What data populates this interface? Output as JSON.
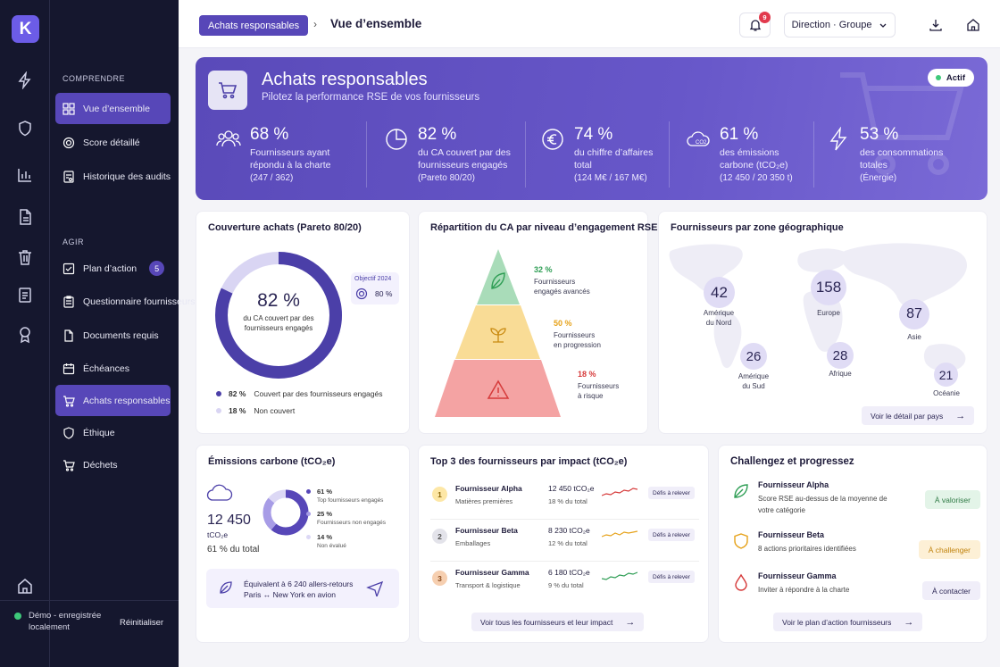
{
  "app": {
    "logo_letter": "K"
  },
  "sidebar": {
    "section_understand": "COMPRENDRE",
    "section_act": "AGIR",
    "items": [
      {
        "label": "Vue d’ensemble",
        "icon": "grid-icon"
      },
      {
        "label": "Score détaillé",
        "icon": "target-icon"
      },
      {
        "label": "Historique des audits",
        "icon": "audit-icon"
      },
      {
        "label": "Plan d’action",
        "icon": "checkbox-icon",
        "badge": "5"
      },
      {
        "label": "Questionnaire fournisseurs",
        "icon": "clipboard-icon"
      },
      {
        "label": "Documents requis",
        "icon": "document-icon"
      },
      {
        "label": "Échéances",
        "icon": "calendar-icon"
      },
      {
        "label": "Achats responsables",
        "icon": "cart-icon"
      },
      {
        "label": "Éthique",
        "icon": "shield-icon"
      },
      {
        "label": "Déchets",
        "icon": "cart-icon"
      }
    ],
    "footer": {
      "status": "Démo - enregistrée localement",
      "reset": "Réinitialiser"
    }
  },
  "header": {
    "breadcrumb_parent": "Achats responsables",
    "breadcrumb_sep": "›",
    "page_title": "Vue d’ensemble",
    "notifications_count": "9",
    "scope": "Direction · Groupe"
  },
  "hero": {
    "title": "Achats responsables",
    "subtitle": "Pilotez la performance RSE de vos fournisseurs",
    "status": "Actif",
    "kpis": [
      {
        "value": "68 %",
        "label1": "Fournisseurs ayant",
        "label2": "répondu à la charte",
        "sub": "(247 / 362)",
        "icon": "users-icon"
      },
      {
        "value": "82 %",
        "label1": "du CA couvert par des",
        "label2": "fournisseurs engagés",
        "sub": "(Pareto 80/20)",
        "icon": "pie-icon"
      },
      {
        "value": "74 %",
        "label1": "du chiffre d’affaires",
        "label2": "total",
        "sub": "(124 M€ / 167 M€)",
        "icon": "euro-icon"
      },
      {
        "value": "61 %",
        "label1": "des émissions",
        "label2": "carbone (tCO₂e)",
        "sub": "(12 450 / 20 350 t)",
        "icon": "co2-cloud-icon"
      },
      {
        "value": "53 %",
        "label1": "des consommations",
        "label2": "totales",
        "sub": "(Énergie)",
        "icon": "lightning-icon"
      }
    ]
  },
  "coverage": {
    "title": "Couverture achats (Pareto 80/20)",
    "center_value": "82 %",
    "center_label1": "du CA couvert par des",
    "center_label2": "fournisseurs engagés",
    "objective_label": "Objectif 2024",
    "objective_value": "80 %",
    "share_covered": 82,
    "legend": [
      {
        "value": "82 %",
        "label": "Couvert par des fournisseurs engagés",
        "color": "#4b3fa8"
      },
      {
        "value": "18 %",
        "label": "Non couvert",
        "color": "#d9d5f3"
      }
    ]
  },
  "pyramid": {
    "title": "Répartition du CA par niveau d’engagement RSE",
    "levels": [
      {
        "pct": "32 %",
        "label1": "Fournisseurs",
        "label2": "engagés avancés",
        "color": "#2f9e55"
      },
      {
        "pct": "50 %",
        "label1": "Fournisseurs",
        "label2": "en progression",
        "color": "#e6a21a"
      },
      {
        "pct": "18 %",
        "label1": "Fournisseurs",
        "label2": "à risque",
        "color": "#d63a3a"
      }
    ]
  },
  "geo": {
    "title": "Fournisseurs par zone géographique",
    "zones": [
      {
        "count": "42",
        "label1": "Amérique",
        "label2": "du Nord"
      },
      {
        "count": "158",
        "label1": "Europe",
        "label2": ""
      },
      {
        "count": "87",
        "label1": "Asie",
        "label2": ""
      },
      {
        "count": "26",
        "label1": "Amérique",
        "label2": "du Sud"
      },
      {
        "count": "28",
        "label1": "Afrique",
        "label2": ""
      },
      {
        "count": "21",
        "label1": "Océanie",
        "label2": ""
      }
    ],
    "link": "Voir le détail par pays"
  },
  "emissions": {
    "title": "Émissions carbone (tCO₂e)",
    "value": "12 450",
    "unit": "tCO₂e",
    "share": "61 % du total",
    "legend": [
      {
        "value": "61 %",
        "label": "Top fournisseurs engagés",
        "share": 61,
        "color": "#5747b8"
      },
      {
        "value": "25 %",
        "label": "Fournisseurs non engagés",
        "share": 25,
        "color": "#a79ce6"
      },
      {
        "value": "14 %",
        "label": "Non évalué",
        "share": 14,
        "color": "#dcd8f5"
      }
    ],
    "equivalence1": "Équivalent à 6 240 allers-retours",
    "equivalence2": "Paris ↔ New York en avion"
  },
  "top_suppliers": {
    "title": "Top 3 des fournisseurs par impact (tCO₂e)",
    "rows": [
      {
        "rank": "1",
        "name": "Fournisseur Alpha",
        "category": "Matières premières",
        "value": "12 450 tCO₂e",
        "share": "18 % du total",
        "tag": "Défis à relever",
        "color": "#d63a3a"
      },
      {
        "rank": "2",
        "name": "Fournisseur Beta",
        "category": "Emballages",
        "value": "8 230 tCO₂e",
        "share": "12 % du total",
        "tag": "Défis à relever",
        "color": "#e6a21a"
      },
      {
        "rank": "3",
        "name": "Fournisseur Gamma",
        "category": "Transport & logistique",
        "value": "6 180 tCO₂e",
        "share": "9 % du total",
        "tag": "Défis à relever",
        "color": "#2f9e55"
      }
    ],
    "link": "Voir tous les fournisseurs et leur impact"
  },
  "challenge": {
    "title": "Challengez et progressez",
    "rows": [
      {
        "name": "Fournisseur Alpha",
        "desc": "Score RSE au-dessus de la moyenne de votre catégorie",
        "tag": "À valoriser",
        "icon": "leaf-icon"
      },
      {
        "name": "Fournisseur Beta",
        "desc": "8 actions prioritaires identifiées",
        "tag": "À challenger",
        "icon": "shield-icon"
      },
      {
        "name": "Fournisseur Gamma",
        "desc": "Inviter à répondre à la charte",
        "tag": "À contacter",
        "icon": "drop-icon"
      }
    ],
    "link": "Voir le plan d’action fournisseurs"
  }
}
